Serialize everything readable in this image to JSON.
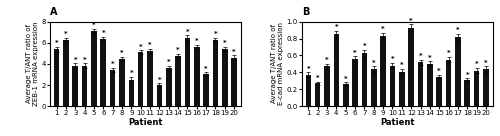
{
  "chart_data": [
    {
      "type": "bar",
      "title": "A",
      "xlabel": "Patient",
      "ylabel": "Average T/ANT ratio of\nZEB-1 mRNA expression",
      "categories": [
        1,
        2,
        3,
        4,
        5,
        6,
        7,
        8,
        9,
        10,
        11,
        12,
        13,
        14,
        15,
        16,
        17,
        18,
        19,
        20
      ],
      "values": [
        5.4,
        6.25,
        3.85,
        3.85,
        7.15,
        6.4,
        3.45,
        4.45,
        2.5,
        5.1,
        5.25,
        2.0,
        3.6,
        4.75,
        6.5,
        5.6,
        3.05,
        6.3,
        5.4,
        4.6
      ],
      "errors": [
        0.25,
        0.2,
        0.2,
        0.2,
        0.2,
        0.2,
        0.2,
        0.2,
        0.3,
        0.2,
        0.2,
        0.15,
        0.2,
        0.2,
        0.2,
        0.2,
        0.15,
        0.2,
        0.2,
        0.2
      ],
      "annotations": [
        "*",
        "*",
        "*",
        "*",
        "*",
        "*",
        "*",
        "*",
        "*",
        "*",
        "*",
        "*",
        "*",
        "*",
        "*",
        "*",
        "*",
        "*",
        "*",
        "*"
      ],
      "color": "#111111",
      "ylim": [
        0,
        8
      ],
      "yticks": [
        0,
        2,
        4,
        6,
        8
      ]
    },
    {
      "type": "bar",
      "title": "B",
      "xlabel": "Patient",
      "ylabel": "Average T/ANT ratio of\nE-cad mRNA expression",
      "categories": [
        1,
        2,
        3,
        4,
        5,
        6,
        7,
        8,
        9,
        10,
        11,
        12,
        13,
        14,
        15,
        16,
        17,
        18,
        19,
        20
      ],
      "values": [
        0.37,
        0.27,
        0.47,
        0.85,
        0.26,
        0.56,
        0.63,
        0.44,
        0.83,
        0.48,
        0.41,
        0.93,
        0.52,
        0.5,
        0.35,
        0.55,
        0.82,
        0.31,
        0.42,
        0.44
      ],
      "errors": [
        0.03,
        0.02,
        0.03,
        0.04,
        0.02,
        0.03,
        0.04,
        0.03,
        0.04,
        0.03,
        0.03,
        0.04,
        0.03,
        0.03,
        0.02,
        0.03,
        0.04,
        0.02,
        0.03,
        0.03
      ],
      "annotations": [
        "*",
        "*",
        "*",
        "*",
        "*",
        "*",
        "*",
        "*",
        "*",
        "*",
        "*",
        "*",
        "*",
        "*",
        "*",
        "*",
        "*",
        "*",
        "*",
        "*"
      ],
      "color": "#111111",
      "ylim": [
        0.0,
        1.0
      ],
      "yticks": [
        0.0,
        0.2,
        0.4,
        0.6,
        0.8,
        1.0
      ]
    }
  ]
}
